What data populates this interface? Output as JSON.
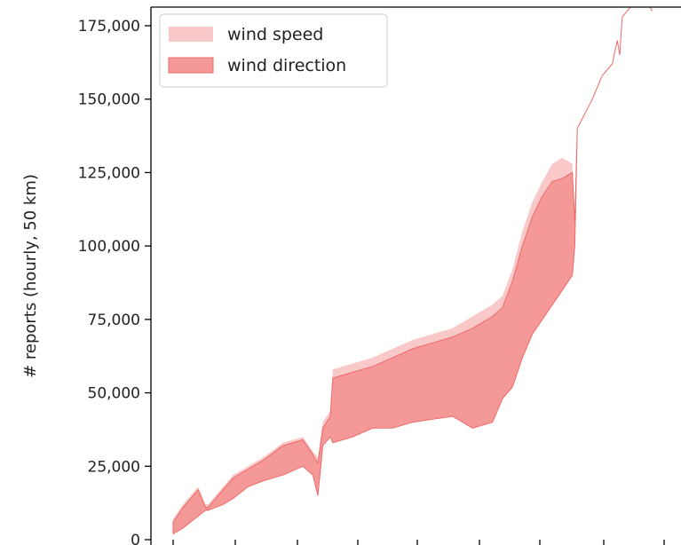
{
  "chart_data": {
    "type": "area",
    "ylabel": "# reports (hourly, 50 km)",
    "ylim": [
      0,
      180000
    ],
    "yticks": [
      0,
      25000,
      50000,
      75000,
      100000,
      125000,
      150000,
      175000
    ],
    "ytick_labels": [
      "0",
      "25,000",
      "50,000",
      "75,000",
      "100,000",
      "125,000",
      "150,000",
      "175,000"
    ],
    "x_range": [
      0,
      100
    ],
    "legend_position": "top-left",
    "series": [
      {
        "name": "wind speed",
        "color": "#f9c8c8",
        "x": [
          0,
          2,
          5,
          6.5,
          7,
          10,
          12,
          15,
          18,
          22,
          26,
          28,
          29,
          30,
          31.5,
          32,
          36,
          40,
          44,
          48,
          52,
          56,
          60,
          64,
          66,
          68,
          70,
          72,
          74,
          76,
          78,
          80,
          80.5,
          81,
          84,
          86,
          88,
          89,
          89.5,
          90,
          92,
          94,
          95,
          96
        ],
        "upper": [
          7000,
          12000,
          18000,
          12000,
          12000,
          18000,
          22000,
          25000,
          28000,
          33000,
          35000,
          30000,
          28000,
          40000,
          44000,
          58000,
          60000,
          62000,
          65000,
          68000,
          70000,
          72000,
          76000,
          80000,
          83000,
          92000,
          105000,
          115000,
          122000,
          128000,
          130000,
          128000,
          110000,
          140000,
          150000,
          158000,
          162000,
          170000,
          165000,
          178000,
          182000,
          185000,
          183000,
          180000
        ],
        "lower": [
          2000,
          4000,
          8000,
          10000,
          10000,
          12000,
          14000,
          18000,
          20000,
          22000,
          25000,
          22000,
          15000,
          32000,
          35000,
          33000,
          35000,
          38000,
          38000,
          40000,
          41000,
          42000,
          38000,
          40000,
          48000,
          52000,
          62000,
          70000,
          75000,
          80000,
          85000,
          90000,
          100000,
          140000,
          150000,
          158000,
          162000,
          170000,
          165000,
          178000,
          182000,
          185000,
          183000,
          180000
        ]
      },
      {
        "name": "wind direction",
        "color": "#f59898",
        "x": [
          0,
          2,
          5,
          6.5,
          7,
          10,
          12,
          15,
          18,
          22,
          26,
          28,
          29,
          30,
          31.5,
          32,
          36,
          40,
          44,
          48,
          52,
          56,
          60,
          64,
          66,
          68,
          70,
          72,
          74,
          76,
          78,
          80,
          80.5,
          81,
          84,
          86,
          88,
          89,
          89.5,
          90,
          92,
          94,
          95,
          96
        ],
        "upper": [
          6000,
          11000,
          17000,
          11000,
          11000,
          17000,
          21000,
          24000,
          27000,
          32000,
          34000,
          29000,
          26000,
          38000,
          42000,
          55000,
          57000,
          59000,
          62000,
          65000,
          67000,
          69000,
          72000,
          76000,
          79000,
          88000,
          100000,
          110000,
          117000,
          122000,
          123000,
          125000,
          108000,
          140000,
          150000,
          158000,
          162000,
          170000,
          165000,
          178000,
          182000,
          185000,
          183000,
          180000
        ],
        "lower": [
          2000,
          4000,
          8000,
          10000,
          10000,
          12000,
          14000,
          18000,
          20000,
          22000,
          25000,
          22000,
          15000,
          32000,
          35000,
          33000,
          35000,
          38000,
          38000,
          40000,
          41000,
          42000,
          38000,
          40000,
          48000,
          52000,
          62000,
          70000,
          75000,
          80000,
          85000,
          90000,
          100000,
          140000,
          150000,
          158000,
          162000,
          170000,
          165000,
          178000,
          182000,
          185000,
          183000,
          180000
        ]
      }
    ]
  }
}
